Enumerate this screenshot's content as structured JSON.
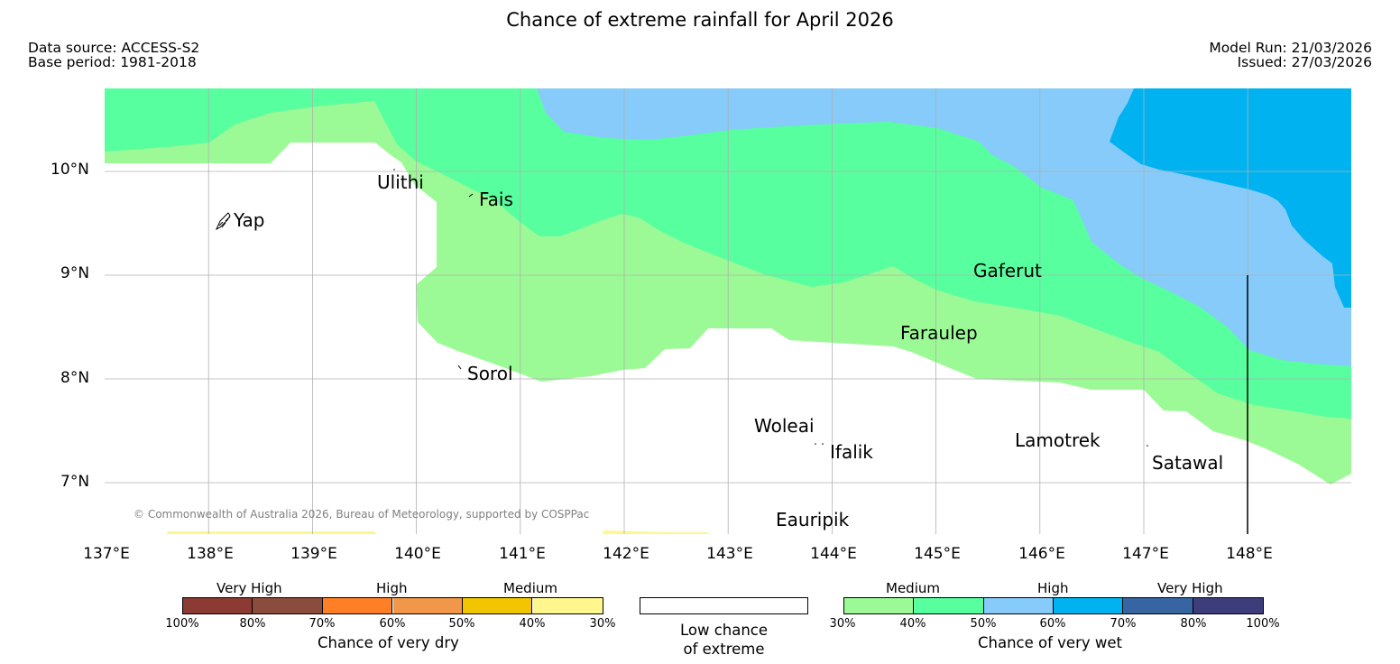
{
  "title": "Chance of extreme rainfall for April 2026",
  "header": {
    "data_source": "Data source: ACCESS-S2",
    "base_period": "Base period: 1981-2018",
    "model_run": "Model Run: 21/03/2026",
    "issued": "Issued: 27/03/2026"
  },
  "map": {
    "latitude_labels": [
      "10°N",
      "9°N",
      "8°N",
      "7°N"
    ],
    "longitude_labels": [
      "137°E",
      "138°E",
      "139°E",
      "140°E",
      "141°E",
      "142°E",
      "143°E",
      "144°E",
      "145°E",
      "146°E",
      "147°E",
      "148°E"
    ],
    "islands": [
      "Yap",
      "Ulithi",
      "Fais",
      "Gaferut",
      "Faraulep",
      "Sorol",
      "Woleai",
      "Ifalik",
      "Lamotrek",
      "Satawal",
      "Eauripik"
    ],
    "copyright": "© Commonwealth of Australia 2026, Bureau of Meteorology, supported by COSPPac"
  },
  "legend": {
    "dry": {
      "categories": [
        "Very High",
        "High",
        "Medium"
      ],
      "ticks": [
        "100%",
        "80%",
        "70%",
        "60%",
        "50%",
        "40%",
        "30%"
      ],
      "colors": [
        "#8b3a34",
        "#8c4c3d",
        "#ff7f27",
        "#f0974a",
        "#f2c500",
        "#fff68e"
      ],
      "title": "Chance of very dry"
    },
    "neutral": {
      "line1": "Low chance",
      "line2": "of extreme",
      "color": "#ffffff"
    },
    "wet": {
      "categories": [
        "Medium",
        "High",
        "Very High"
      ],
      "ticks": [
        "30%",
        "40%",
        "50%",
        "60%",
        "70%",
        "80%",
        "100%"
      ],
      "colors": [
        "#9bfa96",
        "#57ff9f",
        "#86cbfa",
        "#00b2ef",
        "#3765a3",
        "#3e3d7b"
      ],
      "title": "Chance of very wet"
    }
  },
  "colors": {
    "very_wet_medium_30_40": "#9bfa96",
    "very_wet_medium_40_50": "#57ff9f",
    "very_wet_high_50_60": "#86cbfa",
    "very_wet_high_60_70": "#00b2ef",
    "very_dry_30_40": "#fff68e",
    "grid": "#b0b0b0"
  }
}
